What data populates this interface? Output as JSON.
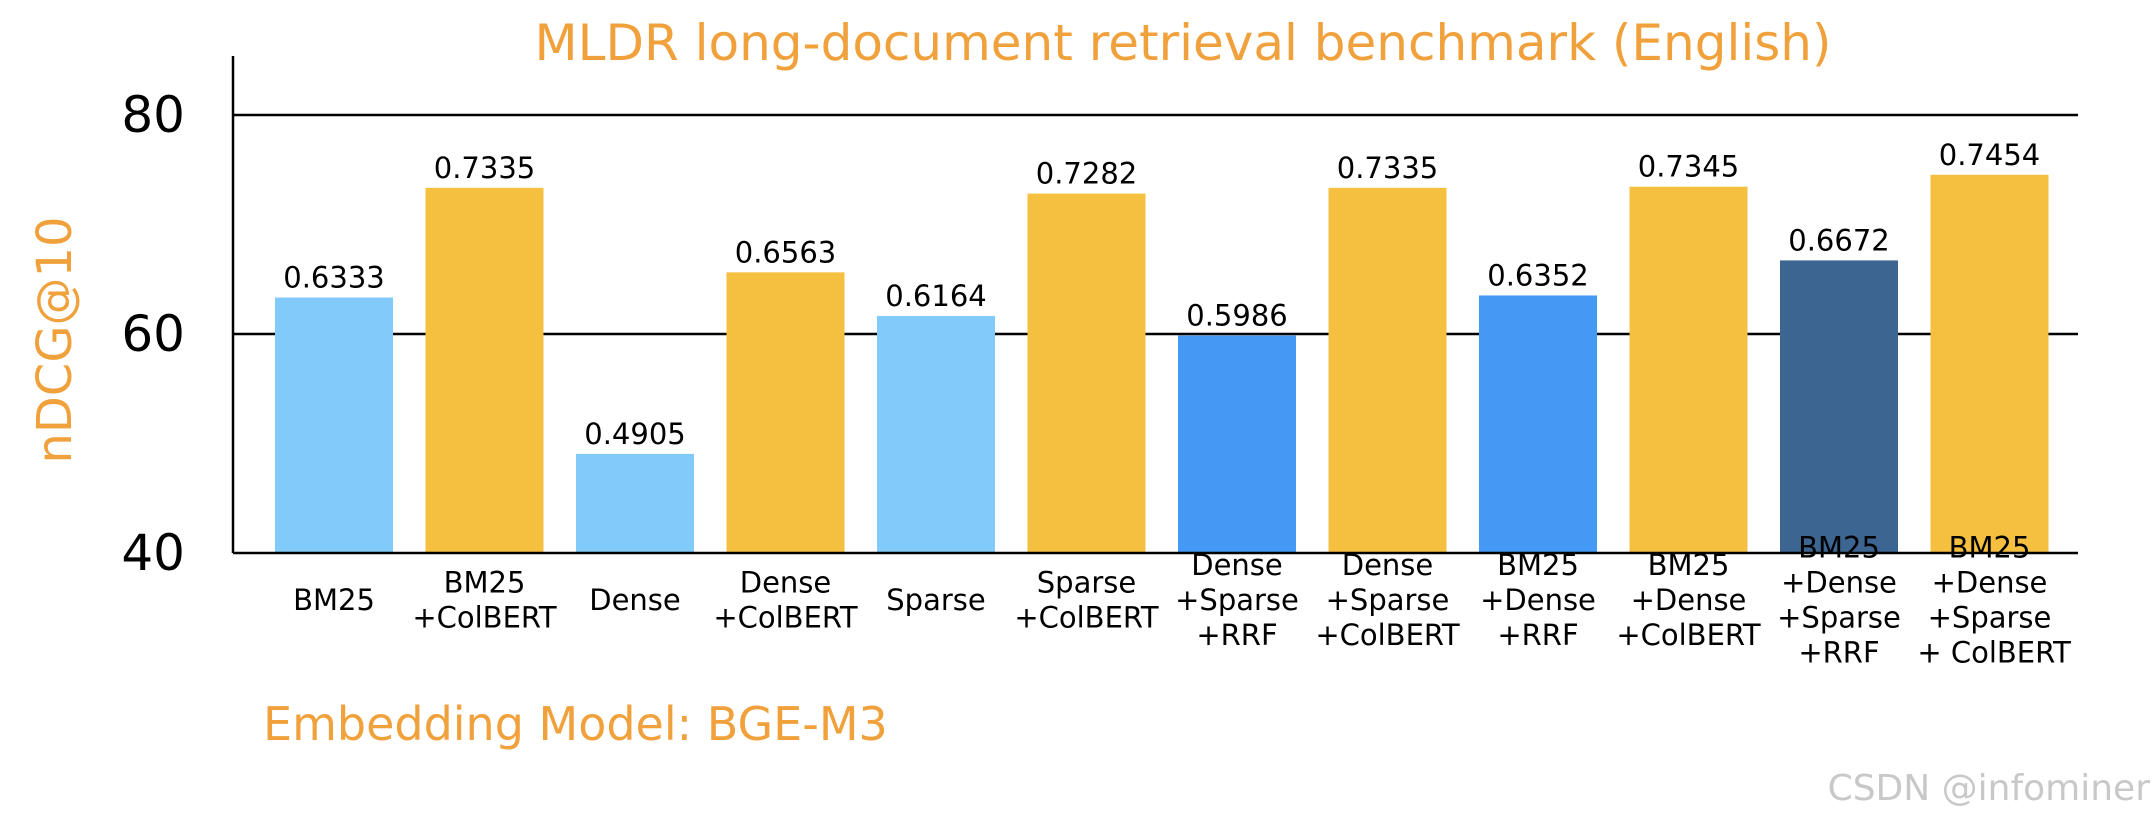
{
  "chart_data": {
    "type": "bar",
    "title": "MLDR long-document retrieval benchmark (English)",
    "ylabel": "nDCG@10",
    "xlabel": "",
    "ylim": [
      40,
      86
    ],
    "yticks": [
      "40",
      "60",
      "80"
    ],
    "yticks_values": [
      40,
      60,
      80
    ],
    "grid": "horizontal at 60 and 80",
    "categories": [
      [
        "BM25"
      ],
      [
        "BM25",
        "+ColBERT"
      ],
      [
        "Dense"
      ],
      [
        "Dense",
        "+ColBERT"
      ],
      [
        "Sparse"
      ],
      [
        "Sparse",
        "+ColBERT"
      ],
      [
        "Dense",
        "+Sparse",
        "+RRF"
      ],
      [
        "Dense",
        "+Sparse",
        "+ColBERT"
      ],
      [
        "BM25",
        "+Dense",
        "+RRF"
      ],
      [
        "BM25",
        "+Dense",
        "+ColBERT"
      ],
      [
        "BM25",
        "+Dense",
        "+Sparse",
        "+RRF"
      ],
      [
        "BM25",
        "+Dense",
        "+Sparse",
        " + ColBERT"
      ]
    ],
    "values": [
      63.33,
      73.35,
      49.05,
      65.63,
      61.64,
      72.82,
      59.86,
      73.35,
      63.52,
      73.45,
      66.72,
      74.54
    ],
    "data_labels": [
      "0.6333",
      "0.7335",
      "0.4905",
      "0.6563",
      "0.6164",
      "0.7282",
      "0.5986",
      "0.7335",
      "0.6352",
      "0.7345",
      "0.6672",
      "0.7454"
    ],
    "colors": [
      "#80cbf9",
      "#f5c040",
      "#80cbf9",
      "#f5c040",
      "#80cbf9",
      "#f5c040",
      "#4499f5",
      "#f5c040",
      "#4499f5",
      "#f5c040",
      "#3d6592",
      "#f5c040"
    ],
    "annotation": "Embedding Model: BGE-M3"
  },
  "watermark": "CSDN @infominer"
}
